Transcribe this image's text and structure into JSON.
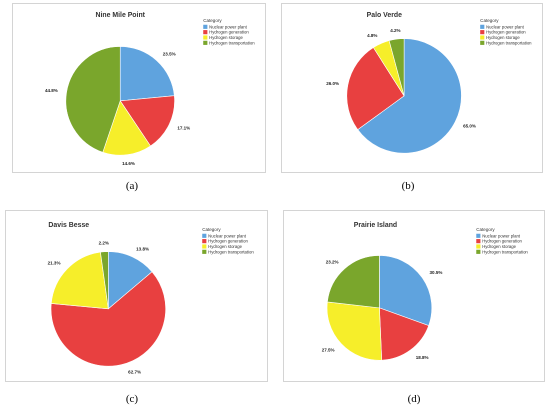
{
  "chart_data": [
    {
      "type": "pie",
      "title": "Nine Mile Point",
      "caption": "(a)",
      "legend": {
        "title": "Category",
        "placement": "right"
      },
      "categories": [
        "Nuclear power plant",
        "Hydrogen generation",
        "Hydrogen storage",
        "Hydrogen transportation"
      ],
      "values": [
        23.5,
        17.1,
        14.6,
        44.8
      ],
      "labels": [
        "23.5%",
        "17.1%",
        "14.6%",
        "44.8%"
      ]
    },
    {
      "type": "pie",
      "title": "Palo Verde",
      "caption": "(b)",
      "legend": {
        "title": "Category",
        "placement": "right"
      },
      "categories": [
        "Nuclear power plant",
        "Hydrogen generation",
        "Hydrogen storage",
        "Hydrogen transportation"
      ],
      "values": [
        65.0,
        26.0,
        4.8,
        4.2
      ],
      "labels": [
        "65.0%",
        "26.0%",
        "4.8%",
        "4.2%"
      ]
    },
    {
      "type": "pie",
      "title": "Davis Besse",
      "caption": "(c)",
      "legend": {
        "title": "Category",
        "placement": "right"
      },
      "categories": [
        "Nuclear power plant",
        "Hydrogen generation",
        "Hydrogen storage",
        "Hydrogen transportation"
      ],
      "values": [
        13.8,
        62.7,
        21.3,
        2.2
      ],
      "labels": [
        "13.8%",
        "62.7%",
        "21.3%",
        "2.2%"
      ]
    },
    {
      "type": "pie",
      "title": "Prairie Island",
      "caption": "(d)",
      "legend": {
        "title": "Category",
        "placement": "right"
      },
      "categories": [
        "Nuclear power plant",
        "Hydrogen generation",
        "Hydrogen storage",
        "Hydrogen transportation"
      ],
      "values": [
        30.5,
        18.8,
        27.5,
        23.2
      ],
      "labels": [
        "30.5%",
        "18.8%",
        "27.5%",
        "23.2%"
      ]
    }
  ],
  "colors": [
    "#5fa3de",
    "#e84040",
    "#f6ee2a",
    "#7aa62c"
  ]
}
